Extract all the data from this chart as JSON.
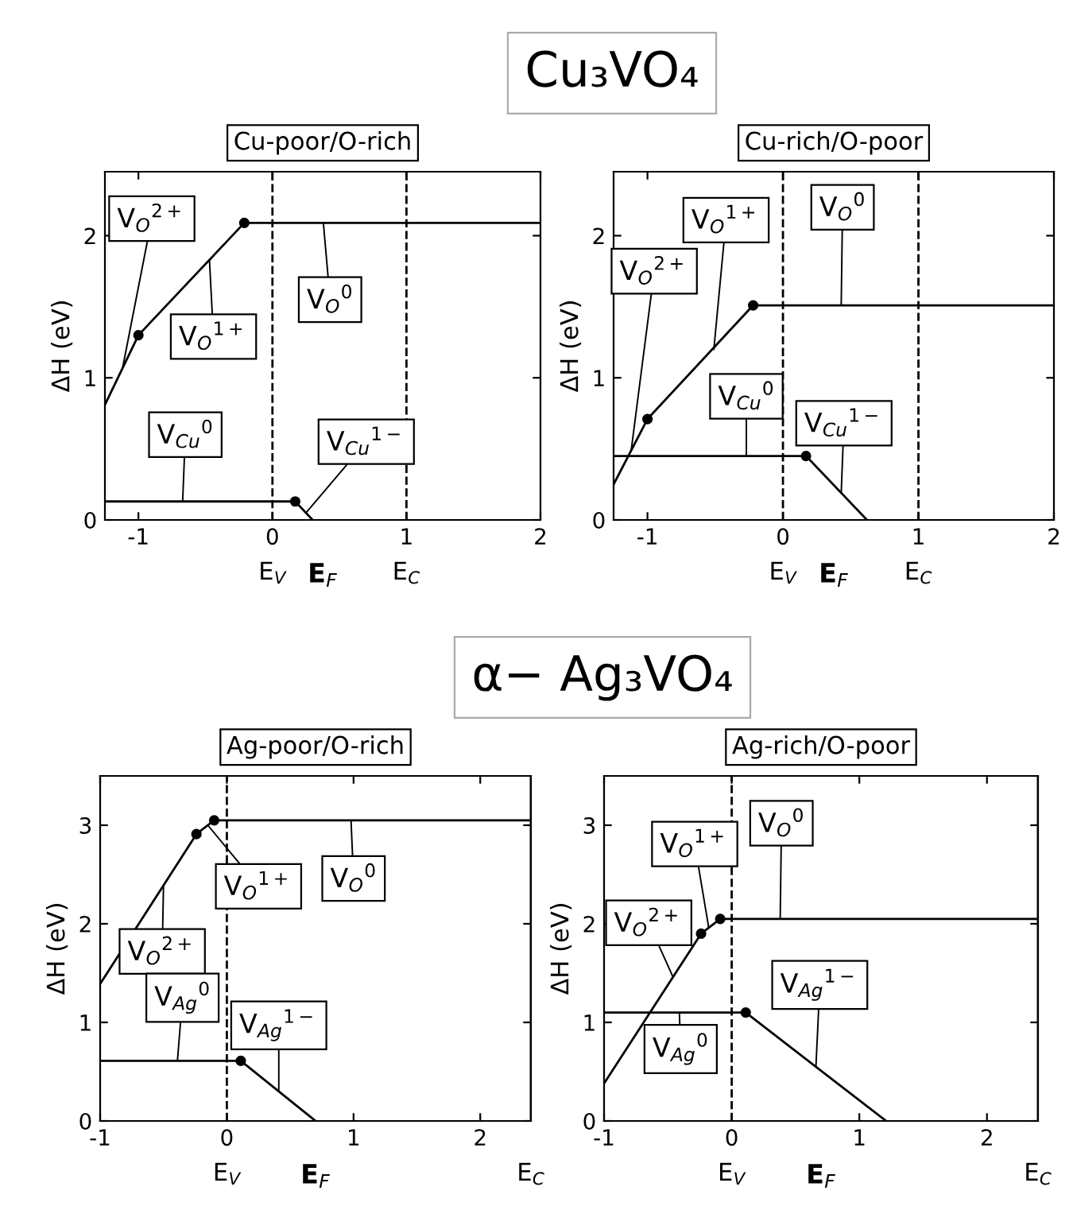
{
  "chart_data": [
    {
      "type": "line",
      "title": "Cu-poor/O-rich",
      "xlabel": "E$_{F}$",
      "ylabel": "ΔH (eV)",
      "xlim": [
        -1.25,
        2
      ],
      "xticks": [
        -1,
        0,
        1,
        2
      ],
      "ylim": [
        0,
        2.45
      ],
      "yticks": [
        0,
        1,
        2
      ],
      "line_style": "solid",
      "grid": false,
      "legend": false,
      "series": [
        {
          "color": "#000000",
          "x": [
            -1.25,
            -1.0,
            -0.21,
            2
          ],
          "values": [
            0.81,
            1.3,
            2.09,
            2.09
          ]
        },
        {
          "color": "#000000",
          "x": [
            -1.25,
            0.17,
            0.3
          ],
          "values": [
            0.13,
            0.13,
            0.0
          ]
        },
        {
          "type": "scatter",
          "color": "#000000",
          "x": [
            -1.0,
            -0.21,
            0.17
          ],
          "values": [
            1.3,
            2.09,
            0.13
          ]
        }
      ],
      "ref_lines": [
        {
          "axis": "x",
          "value": 0,
          "label": "E$_{V}$",
          "line_style": "dashed"
        },
        {
          "axis": "x",
          "value": 1,
          "label": "E$_{C}$",
          "line_style": "dashed"
        }
      ],
      "annotations": [
        "Cu₃VO₄",
        {
          "text": "V$_{O}$$^{2+}$",
          "x": -1.12,
          "y": 1.06
        },
        {
          "text": "V$_{O}$$^{1+}$",
          "x": -0.47,
          "y": 1.83
        },
        {
          "text": "V$_{O}$$^{0}$",
          "x": 0.38,
          "y": 2.09
        },
        {
          "text": "V$_{Cu}$$^{0}$",
          "x": -0.67,
          "y": 0.13
        },
        {
          "text": "V$_{Cu}$$^{1−}$",
          "x": 0.25,
          "y": 0.05
        }
      ]
    },
    {
      "type": "line",
      "title": "Cu-rich/O-poor",
      "xlabel": "E$_{F}$",
      "ylabel": "ΔH (eV)",
      "xlim": [
        -1.25,
        2
      ],
      "xticks": [
        -1,
        0,
        1,
        2
      ],
      "ylim": [
        0,
        2.45
      ],
      "yticks": [
        0,
        1,
        2
      ],
      "line_style": "solid",
      "grid": false,
      "legend": false,
      "series": [
        {
          "color": "#000000",
          "x": [
            -1.25,
            -1.0,
            -0.22,
            2
          ],
          "values": [
            0.25,
            0.71,
            1.51,
            1.51
          ]
        },
        {
          "color": "#000000",
          "x": [
            -1.25,
            0.17,
            0.62
          ],
          "values": [
            0.45,
            0.45,
            0.0
          ]
        },
        {
          "type": "scatter",
          "color": "#000000",
          "x": [
            -1.0,
            -0.22,
            0.17
          ],
          "values": [
            0.71,
            1.51,
            0.45
          ]
        }
      ],
      "ref_lines": [
        {
          "axis": "x",
          "value": 0,
          "label": "E$_{V}$",
          "line_style": "dashed"
        },
        {
          "axis": "x",
          "value": 1,
          "label": "E$_{C}$",
          "line_style": "dashed"
        }
      ],
      "annotations": [
        {
          "text": "V$_{O}$$^{2+}$",
          "x": -1.12,
          "y": 0.49
        },
        {
          "text": "V$_{O}$$^{1+}$",
          "x": -0.51,
          "y": 1.2
        },
        {
          "text": "V$_{O}$$^{0}$",
          "x": 0.43,
          "y": 1.51
        },
        {
          "text": "V$_{Cu}$$^{0}$",
          "x": -0.27,
          "y": 0.45
        },
        {
          "text": "V$_{Cu}$$^{1−}$",
          "x": 0.43,
          "y": 0.19
        }
      ]
    },
    {
      "type": "line",
      "title": "Ag-poor/O-rich",
      "xlabel": "E$_{F}$",
      "ylabel": "ΔH (eV)",
      "xlim": [
        -1,
        2.4
      ],
      "xticks": [
        -1,
        0,
        1,
        2
      ],
      "ylim": [
        0,
        3.5
      ],
      "yticks": [
        0,
        1,
        2,
        3
      ],
      "line_style": "solid",
      "grid": false,
      "legend": false,
      "series": [
        {
          "color": "#000000",
          "x": [
            -1,
            -0.24,
            -0.1,
            2.4
          ],
          "values": [
            1.39,
            2.91,
            3.05,
            3.05
          ]
        },
        {
          "color": "#000000",
          "x": [
            -1,
            0.11,
            0.7
          ],
          "values": [
            0.61,
            0.61,
            0.0
          ]
        },
        {
          "type": "scatter",
          "color": "#000000",
          "x": [
            -0.24,
            -0.1,
            0.11
          ],
          "values": [
            2.91,
            3.05,
            0.61
          ]
        }
      ],
      "ref_lines": [
        {
          "axis": "x",
          "value": 0,
          "label": "E$_{V}$",
          "line_style": "dashed"
        },
        {
          "axis": "x",
          "value": 2.4,
          "label": "E$_{C}$",
          "line_style": "solid"
        }
      ],
      "annotations": [
        "α− Ag₃VO₄",
        {
          "text": "V$_{O}$$^{2+}$",
          "x": -0.5,
          "y": 2.39
        },
        {
          "text": "V$_{O}$$^{1+}$",
          "x": -0.15,
          "y": 3.0
        },
        {
          "text": "V$_{O}$$^{0}$",
          "x": 0.98,
          "y": 3.05
        },
        {
          "text": "V$_{Ag}$$^{0}$",
          "x": -0.39,
          "y": 0.61
        },
        {
          "text": "V$_{Ag}$$^{1−}$",
          "x": 0.41,
          "y": 0.31
        }
      ]
    },
    {
      "type": "line",
      "title": "Ag-rich/O-poor",
      "xlabel": "E$_{F}$",
      "ylabel": "ΔH (eV)",
      "xlim": [
        -1,
        2.4
      ],
      "xticks": [
        -1,
        0,
        1,
        2
      ],
      "ylim": [
        0,
        3.5
      ],
      "yticks": [
        0,
        1,
        2,
        3
      ],
      "line_style": "solid",
      "grid": false,
      "legend": false,
      "series": [
        {
          "color": "#000000",
          "x": [
            -1,
            -0.24,
            -0.09,
            2.4
          ],
          "values": [
            0.38,
            1.9,
            2.05,
            2.05
          ]
        },
        {
          "color": "#000000",
          "x": [
            -1,
            0.11,
            1.21
          ],
          "values": [
            1.1,
            1.1,
            0.0
          ]
        },
        {
          "type": "scatter",
          "color": "#000000",
          "x": [
            -0.24,
            -0.09,
            0.11
          ],
          "values": [
            1.9,
            2.05,
            1.1
          ]
        }
      ],
      "ref_lines": [
        {
          "axis": "x",
          "value": 0,
          "label": "E$_{V}$",
          "line_style": "dashed"
        },
        {
          "axis": "x",
          "value": 2.4,
          "label": "E$_{C}$",
          "line_style": "solid"
        }
      ],
      "annotations": [
        {
          "text": "V$_{O}$$^{2+}$",
          "x": -0.46,
          "y": 1.46
        },
        {
          "text": "V$_{O}$$^{1+}$",
          "x": -0.18,
          "y": 1.96
        },
        {
          "text": "V$_{O}$$^{0}$",
          "x": 0.38,
          "y": 2.05
        },
        {
          "text": "V$_{Ag}$$^{0}$",
          "x": -0.41,
          "y": 1.1
        },
        {
          "text": "V$_{Ag}$$^{1−}$",
          "x": 0.66,
          "y": 0.55
        }
      ]
    }
  ]
}
